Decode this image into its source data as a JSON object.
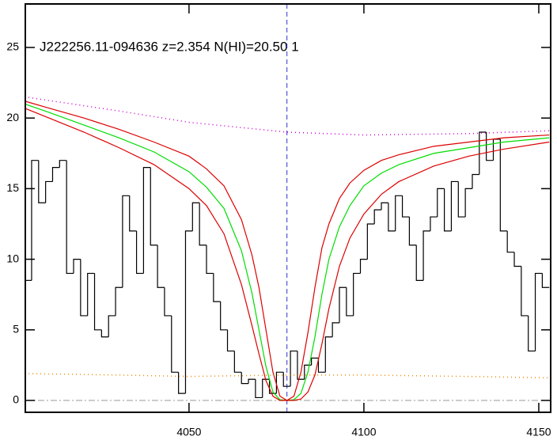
{
  "chart_data": {
    "type": "line",
    "title": "J222256.11-094636 z=2.354 N(HI)=20.50 1",
    "xlim": [
      4003.2,
      4153.4
    ],
    "ylim": [
      -0.84,
      28.08
    ],
    "xticks": [
      4050,
      4100,
      4150
    ],
    "yticks": [
      0,
      5,
      10,
      15,
      20,
      25
    ],
    "vline": 4078,
    "vline_color": "#3333cc",
    "hline": 0,
    "hline_color": "#999999",
    "series": [
      {
        "color": "#000000",
        "style": "step",
        "x": [
          4004,
          4006,
          4008,
          4010,
          4012,
          4014,
          4016,
          4018,
          4020,
          4022,
          4024,
          4026,
          4028,
          4030,
          4032,
          4034,
          4036,
          4038,
          4040,
          4042,
          4044,
          4046,
          4048,
          4050,
          4052,
          4054,
          4056,
          4058,
          4060,
          4062,
          4064,
          4066,
          4068,
          4070,
          4072,
          4074,
          4076,
          4078,
          4080,
          4082,
          4084,
          4086,
          4088,
          4090,
          4092,
          4094,
          4096,
          4098,
          4100,
          4102,
          4104,
          4106,
          4108,
          4110,
          4112,
          4114,
          4116,
          4118,
          4120,
          4122,
          4124,
          4126,
          4128,
          4130,
          4132,
          4134,
          4136,
          4138,
          4140,
          4142,
          4144,
          4146,
          4148,
          4150,
          4152
        ],
        "values": [
          8.5,
          17,
          14,
          15.5,
          16.5,
          17,
          9,
          10,
          6,
          9,
          5,
          4.5,
          6,
          8,
          14.5,
          12,
          9,
          16.5,
          11,
          8,
          6,
          2,
          0.5,
          12,
          14,
          11,
          9,
          7,
          5,
          3.5,
          2,
          1.2,
          1.5,
          0.2,
          1.5,
          0.5,
          2,
          1,
          3.5,
          1.5,
          2.5,
          3,
          2,
          4.5,
          5.5,
          8,
          6,
          9,
          10,
          12.5,
          13.5,
          14,
          12,
          14.5,
          13,
          11,
          8.5,
          12,
          13,
          15,
          12,
          15.5,
          13,
          15,
          16,
          19,
          17,
          18.5,
          12,
          10.5,
          9.5,
          6,
          3.5,
          9,
          8
        ]
      },
      {
        "color": "#00dd00",
        "style": "solid",
        "x": [
          4003,
          4010,
          4020,
          4030,
          4040,
          4050,
          4055,
          4060,
          4065,
          4068,
          4070,
          4072,
          4074,
          4076,
          4078,
          4080,
          4082,
          4084,
          4086,
          4088,
          4090,
          4093,
          4096,
          4100,
          4105,
          4110,
          4120,
          4130,
          4140,
          4153
        ],
        "values": [
          21.0,
          20.4,
          19.5,
          18.6,
          17.6,
          16.2,
          15.1,
          13.6,
          10.6,
          7.6,
          5.0,
          2.4,
          0.6,
          0.05,
          0.0,
          0.05,
          0.5,
          2.0,
          4.5,
          7.5,
          10.0,
          12.3,
          13.8,
          15.2,
          16.1,
          16.7,
          17.5,
          17.9,
          18.3,
          18.6
        ]
      },
      {
        "color": "#dd0000",
        "style": "solid",
        "x": [
          4003,
          4010,
          4020,
          4030,
          4040,
          4050,
          4055,
          4060,
          4065,
          4068,
          4070,
          4072,
          4074,
          4076,
          4078,
          4080,
          4082,
          4084,
          4086,
          4088,
          4090,
          4093,
          4096,
          4100,
          4105,
          4110,
          4120,
          4130,
          4140,
          4153
        ],
        "values": [
          21.2,
          20.7,
          20.0,
          19.2,
          18.3,
          17.3,
          16.4,
          15.2,
          12.8,
          10.3,
          8.0,
          5.0,
          2.0,
          0.3,
          0.0,
          0.3,
          2.0,
          4.8,
          8.0,
          10.8,
          12.5,
          14.3,
          15.4,
          16.3,
          17.0,
          17.4,
          18.0,
          18.3,
          18.6,
          18.8
        ]
      },
      {
        "color": "#dd0000",
        "style": "solid",
        "x": [
          4003,
          4010,
          4020,
          4030,
          4040,
          4050,
          4055,
          4060,
          4065,
          4068,
          4070,
          4072,
          4074,
          4076,
          4078,
          4080,
          4082,
          4084,
          4086,
          4088,
          4090,
          4093,
          4096,
          4100,
          4105,
          4110,
          4120,
          4130,
          4140,
          4153
        ],
        "values": [
          20.7,
          20.0,
          19.0,
          17.9,
          16.7,
          15.0,
          13.8,
          11.8,
          8.2,
          5.3,
          3.3,
          1.4,
          0.3,
          0.0,
          0.0,
          0.0,
          0.1,
          0.6,
          1.8,
          4.0,
          6.5,
          9.5,
          11.5,
          13.2,
          14.6,
          15.5,
          16.6,
          17.3,
          17.8,
          18.3
        ]
      },
      {
        "color": "#cc00cc",
        "style": "dotted",
        "x": [
          4003,
          4030,
          4050,
          4078,
          4100,
          4130,
          4153
        ],
        "values": [
          21.5,
          20.5,
          19.7,
          19.0,
          18.8,
          18.9,
          19.1
        ]
      },
      {
        "color": "#ee8800",
        "style": "dotted",
        "x": [
          4003,
          4030,
          4050,
          4078,
          4100,
          4130,
          4153
        ],
        "values": [
          1.9,
          1.8,
          1.7,
          1.8,
          1.8,
          1.7,
          1.6
        ]
      }
    ]
  }
}
